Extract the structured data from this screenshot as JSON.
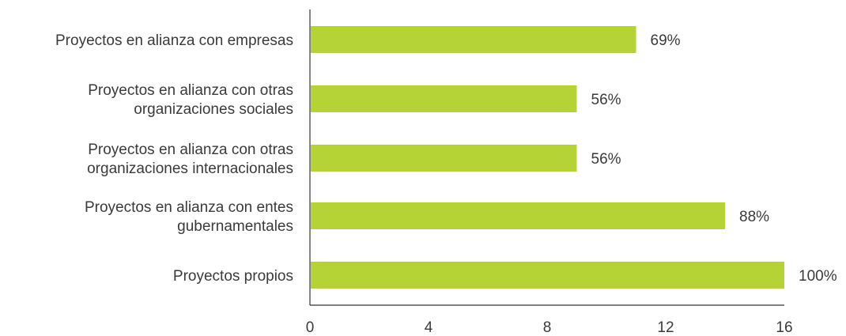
{
  "chart_data": {
    "type": "bar",
    "orientation": "horizontal",
    "categories": [
      [
        "Proyectos en alianza con empresas"
      ],
      [
        "Proyectos en alianza con otras",
        "organizaciones sociales"
      ],
      [
        "Proyectos en alianza con otras",
        "organizaciones internacionales"
      ],
      [
        "Proyectos en alianza con entes",
        "gubernamentales"
      ],
      [
        "Proyectos propios"
      ]
    ],
    "values": [
      11,
      9,
      9,
      14,
      16
    ],
    "data_labels": [
      "69%",
      "56%",
      "56%",
      "88%",
      "100%"
    ],
    "xticks": [
      "0",
      "4",
      "8",
      "12",
      "16"
    ],
    "xlim": [
      0,
      16
    ],
    "grid": false,
    "bar_color": "#b5d334"
  }
}
